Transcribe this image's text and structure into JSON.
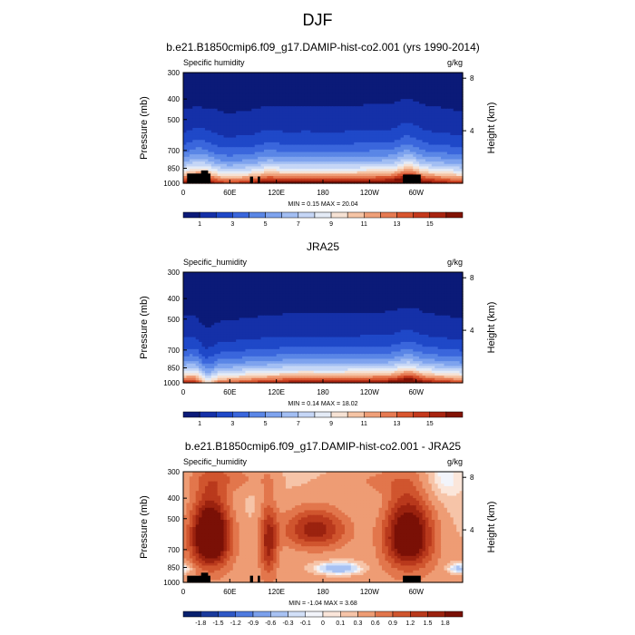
{
  "figure": {
    "title": "DJF"
  },
  "colors": {
    "abs_palette": [
      "#0b1a78",
      "#1530a8",
      "#1f48c8",
      "#3a66dc",
      "#5a86e6",
      "#7ea3ee",
      "#a2bef3",
      "#c5d6f6",
      "#e4ebf6",
      "#f6e2d4",
      "#f5c4a5",
      "#ef9f78",
      "#e67a52",
      "#d9562f",
      "#c4391c",
      "#a82410",
      "#821305"
    ],
    "diff_palette": [
      "#08206e",
      "#1a3a9c",
      "#2f58c6",
      "#4f7be0",
      "#7ba0ec",
      "#a8c2f3",
      "#d2e0f8",
      "#f2f4fa",
      "#fbe6da",
      "#f6c4a8",
      "#ee9c74",
      "#e2764c",
      "#d0552e",
      "#b9391c",
      "#9b220f",
      "#7a1006"
    ],
    "land_mask": "#000000"
  },
  "chart_data": [
    {
      "type": "heatmap",
      "title": "b.e21.B1850cmip6.f09_g17.DAMIP-hist-co2.001 (yrs 1990-2014)",
      "subtitle_left": "Specific humidity",
      "subtitle_right": "g/kg",
      "ylabel": "Pressure (mb)",
      "ylabel_right": "Height (km)",
      "xticks": [
        "0",
        "60E",
        "120E",
        "180",
        "120W",
        "60W"
      ],
      "xtick_lon": [
        0,
        60,
        120,
        180,
        240,
        300
      ],
      "xlim": [
        0,
        360
      ],
      "yticks": [
        "300",
        "400",
        "500",
        "700",
        "850",
        "1000"
      ],
      "ytick_p": [
        300,
        400,
        500,
        700,
        850,
        1000
      ],
      "ylim": [
        1000,
        300
      ],
      "yticks_right": [
        "8",
        "4"
      ],
      "ytick_km": [
        8,
        4
      ],
      "min_max": "MIN =   0.15  MAX =  20.04",
      "colorbar_labels": [
        "1",
        "3",
        "5",
        "7",
        "9",
        "11",
        "13",
        "15"
      ],
      "field": "abs",
      "surface_scale": 16.5,
      "scale_height_hpa": 200,
      "moist_peaks": [
        {
          "lon": 15,
          "width": 11,
          "amp": 0.22
        },
        {
          "lon": 30,
          "width": 12,
          "amp": 0.2
        },
        {
          "lon": 110,
          "width": 9,
          "amp": 0.1
        },
        {
          "lon": 290,
          "width": 10,
          "amp": 0.24
        }
      ],
      "land_blocks": [
        [
          5,
          35,
          900
        ],
        [
          23,
          32,
          870
        ],
        [
          86,
          90,
          930
        ],
        [
          96,
          99,
          930
        ],
        [
          283,
          306,
          910
        ]
      ]
    },
    {
      "type": "heatmap",
      "title": "JRA25",
      "subtitle_left": "Specific_humidity",
      "subtitle_right": "g/kg",
      "ylabel": "Pressure (mb)",
      "ylabel_right": "Height (km)",
      "xticks": [
        "0",
        "60E",
        "120E",
        "180",
        "120W",
        "60W"
      ],
      "xtick_lon": [
        0,
        60,
        120,
        180,
        240,
        300
      ],
      "xlim": [
        0,
        360
      ],
      "yticks": [
        "300",
        "400",
        "500",
        "700",
        "850",
        "1000"
      ],
      "ytick_p": [
        300,
        400,
        500,
        700,
        850,
        1000
      ],
      "ylim": [
        1000,
        300
      ],
      "yticks_right": [
        "8",
        "4"
      ],
      "ytick_km": [
        8,
        4
      ],
      "min_max": "MIN =   0.14  MAX =  18.02",
      "colorbar_labels": [
        "1",
        "3",
        "5",
        "7",
        "9",
        "11",
        "13",
        "15"
      ],
      "field": "abs",
      "surface_scale": 15.5,
      "scale_height_hpa": 190,
      "moist_peaks": [
        {
          "lon": 15,
          "width": 10,
          "amp": 0.18
        },
        {
          "lon": 30,
          "width": 8,
          "amp": -0.25
        },
        {
          "lon": 290,
          "width": 10,
          "amp": 0.18
        }
      ],
      "land_blocks": []
    },
    {
      "type": "heatmap",
      "title": "b.e21.B1850cmip6.f09_g17.DAMIP-hist-co2.001 - JRA25",
      "subtitle_left": "Specific_humidity",
      "subtitle_right": "g/kg",
      "ylabel": "Pressure (mb)",
      "ylabel_right": "Height (km)",
      "xticks": [
        "0",
        "60E",
        "120E",
        "180",
        "120W",
        "60W"
      ],
      "xtick_lon": [
        0,
        60,
        120,
        180,
        240,
        300
      ],
      "xlim": [
        0,
        360
      ],
      "yticks": [
        "300",
        "400",
        "500",
        "700",
        "850",
        "1000"
      ],
      "ytick_p": [
        300,
        400,
        500,
        700,
        850,
        1000
      ],
      "ylim": [
        1000,
        300
      ],
      "yticks_right": [
        "8",
        "4"
      ],
      "ytick_km": [
        8,
        4
      ],
      "min_max": "MIN =  -1.04  MAX =   3.68",
      "colorbar_labels": [
        "-1.8",
        "-1.5",
        "-1.2",
        "-0.9",
        "-0.6",
        "-0.3",
        "-0.1",
        "0",
        "0.1",
        "0.3",
        "0.6",
        "0.9",
        "1.2",
        "1.5",
        "1.8"
      ],
      "field": "diff",
      "blobs": [
        {
          "lon": 35,
          "p": 600,
          "wl": 18,
          "wp": 160,
          "amp": 2.6
        },
        {
          "lon": 290,
          "p": 600,
          "wl": 22,
          "wp": 170,
          "amp": 2.2
        },
        {
          "lon": 170,
          "p": 560,
          "wl": 30,
          "wp": 90,
          "amp": 1.4
        },
        {
          "lon": 110,
          "p": 650,
          "wl": 8,
          "wp": 180,
          "amp": 1.3
        },
        {
          "lon": 200,
          "p": 860,
          "wl": 20,
          "wp": 40,
          "amp": -1.0
        },
        {
          "lon": 355,
          "p": 860,
          "wl": 10,
          "wp": 35,
          "amp": -0.8
        },
        {
          "lon": 2,
          "p": 860,
          "wl": 8,
          "wp": 35,
          "amp": -0.6
        },
        {
          "lon": 330,
          "p": 330,
          "wl": 20,
          "wp": 60,
          "amp": -0.3
        },
        {
          "lon": 60,
          "p": 320,
          "wl": 40,
          "wp": 40,
          "amp": 0.5
        },
        {
          "lon": 240,
          "p": 330,
          "wl": 40,
          "wp": 40,
          "amp": 0.4
        }
      ],
      "land_blocks": [
        [
          5,
          35,
          930
        ],
        [
          23,
          32,
          900
        ],
        [
          86,
          90,
          930
        ],
        [
          96,
          99,
          930
        ],
        [
          283,
          306,
          930
        ]
      ]
    }
  ]
}
